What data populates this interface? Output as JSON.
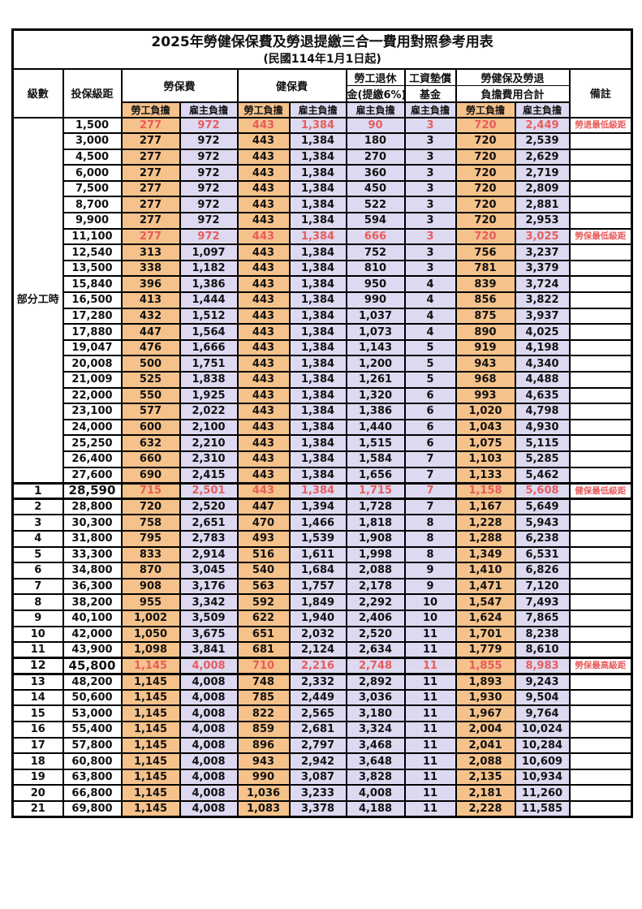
{
  "title": "2025年勞健保保費及勞退提繳三合一費用對照參考用表",
  "subtitle": "(民國114年1月1日起)",
  "colors": {
    "employee_column_bg": "#F5C28B",
    "employer_column_bg": "#DCD9F0",
    "highlight_red": "#E85C5C",
    "remark_red": "#F04545",
    "border_black": "#000000"
  },
  "header": {
    "level": "級數",
    "bracket": "投保級距",
    "labor_ins": "勞保費",
    "health_ins": "健保費",
    "pension_line1": "勞工退休",
    "pension_line2": "金(提繳6%)",
    "fund_line1": "工資墊償",
    "fund_line2": "基金",
    "total_line1": "勞健保及勞退",
    "total_line2": "負擔費用合計",
    "remark": "備註",
    "employee": "勞工負擔",
    "employer": "雇主負擔"
  },
  "part_time": {
    "label": "部分工時",
    "rowspan": 23
  },
  "rows": [
    {
      "level": "",
      "bracket": "1,500",
      "labor_emp": "277",
      "labor_er": "972",
      "health_emp": "443",
      "health_er": "1,384",
      "pension_er": "90",
      "fund_er": "3",
      "total_emp": "720",
      "total_er": "2,449",
      "remark": "勞退最低級距",
      "hl": true
    },
    {
      "level": "",
      "bracket": "3,000",
      "labor_emp": "277",
      "labor_er": "972",
      "health_emp": "443",
      "health_er": "1,384",
      "pension_er": "180",
      "fund_er": "3",
      "total_emp": "720",
      "total_er": "2,539",
      "remark": ""
    },
    {
      "level": "",
      "bracket": "4,500",
      "labor_emp": "277",
      "labor_er": "972",
      "health_emp": "443",
      "health_er": "1,384",
      "pension_er": "270",
      "fund_er": "3",
      "total_emp": "720",
      "total_er": "2,629",
      "remark": ""
    },
    {
      "level": "",
      "bracket": "6,000",
      "labor_emp": "277",
      "labor_er": "972",
      "health_emp": "443",
      "health_er": "1,384",
      "pension_er": "360",
      "fund_er": "3",
      "total_emp": "720",
      "total_er": "2,719",
      "remark": ""
    },
    {
      "level": "",
      "bracket": "7,500",
      "labor_emp": "277",
      "labor_er": "972",
      "health_emp": "443",
      "health_er": "1,384",
      "pension_er": "450",
      "fund_er": "3",
      "total_emp": "720",
      "total_er": "2,809",
      "remark": ""
    },
    {
      "level": "",
      "bracket": "8,700",
      "labor_emp": "277",
      "labor_er": "972",
      "health_emp": "443",
      "health_er": "1,384",
      "pension_er": "522",
      "fund_er": "3",
      "total_emp": "720",
      "total_er": "2,881",
      "remark": ""
    },
    {
      "level": "",
      "bracket": "9,900",
      "labor_emp": "277",
      "labor_er": "972",
      "health_emp": "443",
      "health_er": "1,384",
      "pension_er": "594",
      "fund_er": "3",
      "total_emp": "720",
      "total_er": "2,953",
      "remark": ""
    },
    {
      "level": "",
      "bracket": "11,100",
      "labor_emp": "277",
      "labor_er": "972",
      "health_emp": "443",
      "health_er": "1,384",
      "pension_er": "666",
      "fund_er": "3",
      "total_emp": "720",
      "total_er": "3,025",
      "remark": "勞保最低級距",
      "hl": true
    },
    {
      "level": "",
      "bracket": "12,540",
      "labor_emp": "313",
      "labor_er": "1,097",
      "health_emp": "443",
      "health_er": "1,384",
      "pension_er": "752",
      "fund_er": "3",
      "total_emp": "756",
      "total_er": "3,237",
      "remark": ""
    },
    {
      "level": "",
      "bracket": "13,500",
      "labor_emp": "338",
      "labor_er": "1,182",
      "health_emp": "443",
      "health_er": "1,384",
      "pension_er": "810",
      "fund_er": "3",
      "total_emp": "781",
      "total_er": "3,379",
      "remark": ""
    },
    {
      "level": "",
      "bracket": "15,840",
      "labor_emp": "396",
      "labor_er": "1,386",
      "health_emp": "443",
      "health_er": "1,384",
      "pension_er": "950",
      "fund_er": "4",
      "total_emp": "839",
      "total_er": "3,724",
      "remark": ""
    },
    {
      "level": "",
      "bracket": "16,500",
      "labor_emp": "413",
      "labor_er": "1,444",
      "health_emp": "443",
      "health_er": "1,384",
      "pension_er": "990",
      "fund_er": "4",
      "total_emp": "856",
      "total_er": "3,822",
      "remark": ""
    },
    {
      "level": "",
      "bracket": "17,280",
      "labor_emp": "432",
      "labor_er": "1,512",
      "health_emp": "443",
      "health_er": "1,384",
      "pension_er": "1,037",
      "fund_er": "4",
      "total_emp": "875",
      "total_er": "3,937",
      "remark": ""
    },
    {
      "level": "",
      "bracket": "17,880",
      "labor_emp": "447",
      "labor_er": "1,564",
      "health_emp": "443",
      "health_er": "1,384",
      "pension_er": "1,073",
      "fund_er": "4",
      "total_emp": "890",
      "total_er": "4,025",
      "remark": ""
    },
    {
      "level": "",
      "bracket": "19,047",
      "labor_emp": "476",
      "labor_er": "1,666",
      "health_emp": "443",
      "health_er": "1,384",
      "pension_er": "1,143",
      "fund_er": "5",
      "total_emp": "919",
      "total_er": "4,198",
      "remark": ""
    },
    {
      "level": "",
      "bracket": "20,008",
      "labor_emp": "500",
      "labor_er": "1,751",
      "health_emp": "443",
      "health_er": "1,384",
      "pension_er": "1,200",
      "fund_er": "5",
      "total_emp": "943",
      "total_er": "4,340",
      "remark": ""
    },
    {
      "level": "",
      "bracket": "21,009",
      "labor_emp": "525",
      "labor_er": "1,838",
      "health_emp": "443",
      "health_er": "1,384",
      "pension_er": "1,261",
      "fund_er": "5",
      "total_emp": "968",
      "total_er": "4,488",
      "remark": ""
    },
    {
      "level": "",
      "bracket": "22,000",
      "labor_emp": "550",
      "labor_er": "1,925",
      "health_emp": "443",
      "health_er": "1,384",
      "pension_er": "1,320",
      "fund_er": "6",
      "total_emp": "993",
      "total_er": "4,635",
      "remark": ""
    },
    {
      "level": "",
      "bracket": "23,100",
      "labor_emp": "577",
      "labor_er": "2,022",
      "health_emp": "443",
      "health_er": "1,384",
      "pension_er": "1,386",
      "fund_er": "6",
      "total_emp": "1,020",
      "total_er": "4,798",
      "remark": ""
    },
    {
      "level": "",
      "bracket": "24,000",
      "labor_emp": "600",
      "labor_er": "2,100",
      "health_emp": "443",
      "health_er": "1,384",
      "pension_er": "1,440",
      "fund_er": "6",
      "total_emp": "1,043",
      "total_er": "4,930",
      "remark": ""
    },
    {
      "level": "",
      "bracket": "25,250",
      "labor_emp": "632",
      "labor_er": "2,210",
      "health_emp": "443",
      "health_er": "1,384",
      "pension_er": "1,515",
      "fund_er": "6",
      "total_emp": "1,075",
      "total_er": "5,115",
      "remark": ""
    },
    {
      "level": "",
      "bracket": "26,400",
      "labor_emp": "660",
      "labor_er": "2,310",
      "health_emp": "443",
      "health_er": "1,384",
      "pension_er": "1,584",
      "fund_er": "7",
      "total_emp": "1,103",
      "total_er": "5,285",
      "remark": ""
    },
    {
      "level": "",
      "bracket": "27,600",
      "labor_emp": "690",
      "labor_er": "2,415",
      "health_emp": "443",
      "health_er": "1,384",
      "pension_er": "1,656",
      "fund_er": "7",
      "total_emp": "1,133",
      "total_er": "5,462",
      "remark": ""
    },
    {
      "level": "1",
      "bracket": "28,590",
      "labor_emp": "715",
      "labor_er": "2,501",
      "health_emp": "443",
      "health_er": "1,384",
      "pension_er": "1,715",
      "fund_er": "7",
      "total_emp": "1,158",
      "total_er": "5,608",
      "remark": "健保最低級距",
      "hl": true,
      "big": true,
      "sep": true
    },
    {
      "level": "2",
      "bracket": "28,800",
      "labor_emp": "720",
      "labor_er": "2,520",
      "health_emp": "447",
      "health_er": "1,394",
      "pension_er": "1,728",
      "fund_er": "7",
      "total_emp": "1,167",
      "total_er": "5,649",
      "remark": ""
    },
    {
      "level": "3",
      "bracket": "30,300",
      "labor_emp": "758",
      "labor_er": "2,651",
      "health_emp": "470",
      "health_er": "1,466",
      "pension_er": "1,818",
      "fund_er": "8",
      "total_emp": "1,228",
      "total_er": "5,943",
      "remark": ""
    },
    {
      "level": "4",
      "bracket": "31,800",
      "labor_emp": "795",
      "labor_er": "2,783",
      "health_emp": "493",
      "health_er": "1,539",
      "pension_er": "1,908",
      "fund_er": "8",
      "total_emp": "1,288",
      "total_er": "6,238",
      "remark": ""
    },
    {
      "level": "5",
      "bracket": "33,300",
      "labor_emp": "833",
      "labor_er": "2,914",
      "health_emp": "516",
      "health_er": "1,611",
      "pension_er": "1,998",
      "fund_er": "8",
      "total_emp": "1,349",
      "total_er": "6,531",
      "remark": ""
    },
    {
      "level": "6",
      "bracket": "34,800",
      "labor_emp": "870",
      "labor_er": "3,045",
      "health_emp": "540",
      "health_er": "1,684",
      "pension_er": "2,088",
      "fund_er": "9",
      "total_emp": "1,410",
      "total_er": "6,826",
      "remark": ""
    },
    {
      "level": "7",
      "bracket": "36,300",
      "labor_emp": "908",
      "labor_er": "3,176",
      "health_emp": "563",
      "health_er": "1,757",
      "pension_er": "2,178",
      "fund_er": "9",
      "total_emp": "1,471",
      "total_er": "7,120",
      "remark": ""
    },
    {
      "level": "8",
      "bracket": "38,200",
      "labor_emp": "955",
      "labor_er": "3,342",
      "health_emp": "592",
      "health_er": "1,849",
      "pension_er": "2,292",
      "fund_er": "10",
      "total_emp": "1,547",
      "total_er": "7,493",
      "remark": ""
    },
    {
      "level": "9",
      "bracket": "40,100",
      "labor_emp": "1,002",
      "labor_er": "3,509",
      "health_emp": "622",
      "health_er": "1,940",
      "pension_er": "2,406",
      "fund_er": "10",
      "total_emp": "1,624",
      "total_er": "7,865",
      "remark": ""
    },
    {
      "level": "10",
      "bracket": "42,000",
      "labor_emp": "1,050",
      "labor_er": "3,675",
      "health_emp": "651",
      "health_er": "2,032",
      "pension_er": "2,520",
      "fund_er": "11",
      "total_emp": "1,701",
      "total_er": "8,238",
      "remark": ""
    },
    {
      "level": "11",
      "bracket": "43,900",
      "labor_emp": "1,098",
      "labor_er": "3,841",
      "health_emp": "681",
      "health_er": "2,124",
      "pension_er": "2,634",
      "fund_er": "11",
      "total_emp": "1,779",
      "total_er": "8,610",
      "remark": ""
    },
    {
      "level": "12",
      "bracket": "45,800",
      "labor_emp": "1,145",
      "labor_er": "4,008",
      "health_emp": "710",
      "health_er": "2,216",
      "pension_er": "2,748",
      "fund_er": "11",
      "total_emp": "1,855",
      "total_er": "8,983",
      "remark": "勞保最高級距",
      "hl": true,
      "big": true,
      "sep": true
    },
    {
      "level": "13",
      "bracket": "48,200",
      "labor_emp": "1,145",
      "labor_er": "4,008",
      "health_emp": "748",
      "health_er": "2,332",
      "pension_er": "2,892",
      "fund_er": "11",
      "total_emp": "1,893",
      "total_er": "9,243",
      "remark": ""
    },
    {
      "level": "14",
      "bracket": "50,600",
      "labor_emp": "1,145",
      "labor_er": "4,008",
      "health_emp": "785",
      "health_er": "2,449",
      "pension_er": "3,036",
      "fund_er": "11",
      "total_emp": "1,930",
      "total_er": "9,504",
      "remark": ""
    },
    {
      "level": "15",
      "bracket": "53,000",
      "labor_emp": "1,145",
      "labor_er": "4,008",
      "health_emp": "822",
      "health_er": "2,565",
      "pension_er": "3,180",
      "fund_er": "11",
      "total_emp": "1,967",
      "total_er": "9,764",
      "remark": ""
    },
    {
      "level": "16",
      "bracket": "55,400",
      "labor_emp": "1,145",
      "labor_er": "4,008",
      "health_emp": "859",
      "health_er": "2,681",
      "pension_er": "3,324",
      "fund_er": "11",
      "total_emp": "2,004",
      "total_er": "10,024",
      "remark": ""
    },
    {
      "level": "17",
      "bracket": "57,800",
      "labor_emp": "1,145",
      "labor_er": "4,008",
      "health_emp": "896",
      "health_er": "2,797",
      "pension_er": "3,468",
      "fund_er": "11",
      "total_emp": "2,041",
      "total_er": "10,284",
      "remark": ""
    },
    {
      "level": "18",
      "bracket": "60,800",
      "labor_emp": "1,145",
      "labor_er": "4,008",
      "health_emp": "943",
      "health_er": "2,942",
      "pension_er": "3,648",
      "fund_er": "11",
      "total_emp": "2,088",
      "total_er": "10,609",
      "remark": ""
    },
    {
      "level": "19",
      "bracket": "63,800",
      "labor_emp": "1,145",
      "labor_er": "4,008",
      "health_emp": "990",
      "health_er": "3,087",
      "pension_er": "3,828",
      "fund_er": "11",
      "total_emp": "2,135",
      "total_er": "10,934",
      "remark": ""
    },
    {
      "level": "20",
      "bracket": "66,800",
      "labor_emp": "1,145",
      "labor_er": "4,008",
      "health_emp": "1,036",
      "health_er": "3,233",
      "pension_er": "4,008",
      "fund_er": "11",
      "total_emp": "2,181",
      "total_er": "11,260",
      "remark": ""
    },
    {
      "level": "21",
      "bracket": "69,800",
      "labor_emp": "1,145",
      "labor_er": "4,008",
      "health_emp": "1,083",
      "health_er": "3,378",
      "pension_er": "4,188",
      "fund_er": "11",
      "total_emp": "2,228",
      "total_er": "11,585",
      "remark": ""
    }
  ]
}
